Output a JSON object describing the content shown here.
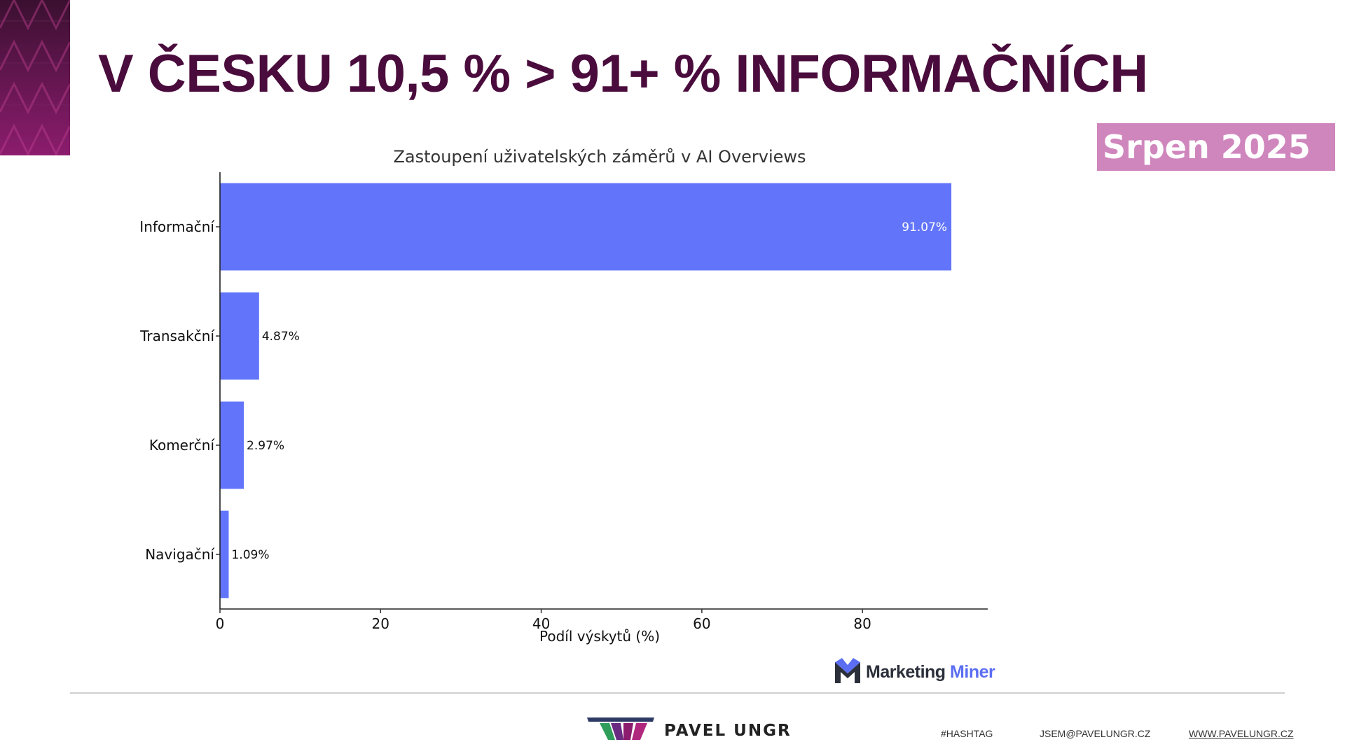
{
  "slide": {
    "headline": "V ČESKU 10,5 % > 91+ % INFORMAČNÍCH",
    "date_badge": "Srpen 2025"
  },
  "chart_data": {
    "type": "bar",
    "orientation": "horizontal",
    "title": "Zastoupení uživatelských záměrů v AI Overviews",
    "xlabel": "Podíl výskytů (%)",
    "ylabel": "",
    "categories": [
      "Informační",
      "Transakční",
      "Komerční",
      "Navigační"
    ],
    "values": [
      91.07,
      4.87,
      2.97,
      1.09
    ],
    "value_labels": [
      "91.07%",
      "4.87%",
      "2.97%",
      "1.09%"
    ],
    "xlim": [
      0,
      95.6
    ],
    "xticks": [
      0,
      20,
      40,
      60,
      80
    ],
    "bar_color": "#6275fa",
    "grid": false,
    "legend": "none"
  },
  "source_logo": {
    "name_part1": "Marketing",
    "name_part2": "Miner",
    "accent_color": "#5b6ef3",
    "icon": "marketing-miner-m-icon"
  },
  "footer": {
    "brand_name": "PAVEL UNGR",
    "brand_icon": "pavel-ungr-logo-icon",
    "hashtag": "#HASHTAG",
    "email": "JSEM@PAVELUNGR.CZ",
    "website": "WWW.PAVELUNGR.CZ"
  },
  "colors": {
    "headline": "#4a0c3c",
    "badge_background": "#cf86bd",
    "corner_gradient_top": "#3a1030",
    "corner_gradient_bottom": "#8c1c6e"
  }
}
